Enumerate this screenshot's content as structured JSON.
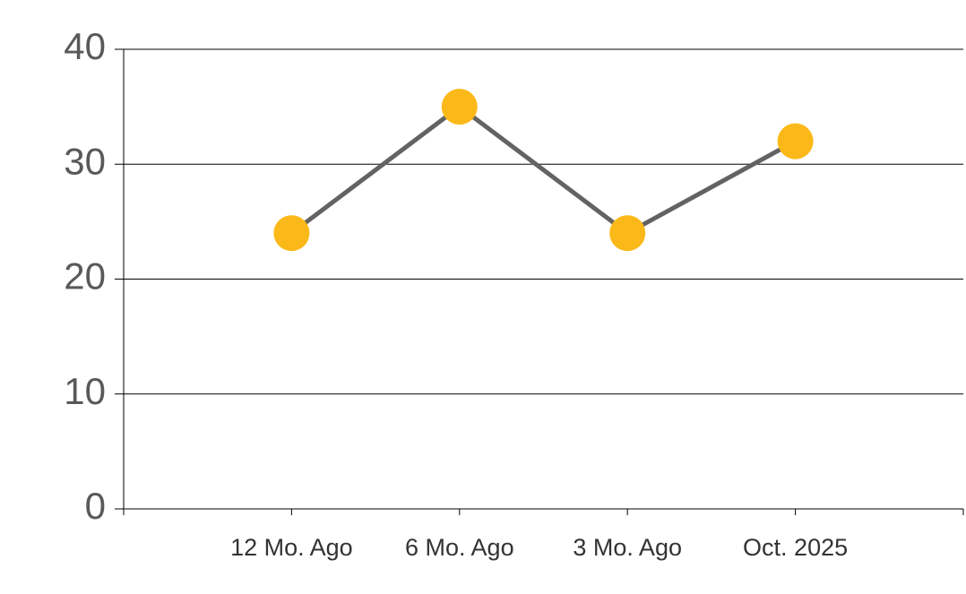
{
  "chart_data": {
    "type": "line",
    "categories": [
      "12 Mo. Ago",
      "6 Mo. Ago",
      "3 Mo. Ago",
      "Oct. 2025"
    ],
    "values": [
      24,
      35,
      24,
      32
    ],
    "color": "#636363",
    "marker_color": "#fbb919",
    "ylim": [
      0,
      40
    ],
    "yticks": [
      0,
      10,
      20,
      30,
      40
    ],
    "grid": true
  }
}
